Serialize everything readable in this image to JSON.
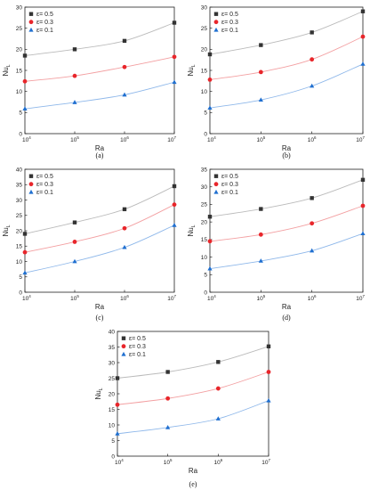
{
  "chart_data": [
    {
      "type": "line",
      "panel_label": "(a)",
      "xlabel": "Ra",
      "ylabel": "Nu",
      "ylabel_sub": "L",
      "x": [
        4,
        5,
        6,
        7
      ],
      "x_scale": "log",
      "xtick_base": "10",
      "ylim": [
        0,
        30
      ],
      "yticks": [
        0,
        5,
        10,
        15,
        20,
        25,
        30
      ],
      "grid": false,
      "legend": "top-left",
      "series": [
        {
          "name": "ε= 0.5",
          "marker": "square",
          "color": "#333333",
          "line_color": "#bbbbbb",
          "values": [
            18.5,
            20.0,
            22.0,
            26.3
          ]
        },
        {
          "name": "ε= 0.3",
          "marker": "circle",
          "color": "#e8262b",
          "line_color": "#f3a0a2",
          "values": [
            12.4,
            13.7,
            15.8,
            18.2
          ]
        },
        {
          "name": "ε= 0.1",
          "marker": "triangle",
          "color": "#1f6fd0",
          "line_color": "#8fb8ea",
          "values": [
            5.9,
            7.4,
            9.2,
            12.2
          ]
        }
      ]
    },
    {
      "type": "line",
      "panel_label": "(b)",
      "xlabel": "Ra",
      "ylabel": "Nu",
      "ylabel_sub": "L",
      "x": [
        4,
        5,
        6,
        7
      ],
      "x_scale": "log",
      "xtick_base": "10",
      "ylim": [
        0,
        30
      ],
      "yticks": [
        0,
        5,
        10,
        15,
        20,
        25,
        30
      ],
      "grid": false,
      "legend": "top-left",
      "series": [
        {
          "name": "ε= 0.5",
          "marker": "square",
          "color": "#333333",
          "line_color": "#bbbbbb",
          "values": [
            18.8,
            21.0,
            24.0,
            29.0
          ]
        },
        {
          "name": "ε= 0.3",
          "marker": "circle",
          "color": "#e8262b",
          "line_color": "#f3a0a2",
          "values": [
            12.8,
            14.6,
            17.6,
            23.0
          ]
        },
        {
          "name": "ε= 0.1",
          "marker": "triangle",
          "color": "#1f6fd0",
          "line_color": "#8fb8ea",
          "values": [
            6.1,
            8.0,
            11.3,
            16.5
          ]
        }
      ]
    },
    {
      "type": "line",
      "panel_label": "(c)",
      "xlabel": "Ra",
      "ylabel": "Nu",
      "ylabel_sub": "L",
      "x": [
        4,
        5,
        6,
        7
      ],
      "x_scale": "log",
      "xtick_base": "10",
      "ylim": [
        0,
        40
      ],
      "yticks": [
        0,
        5,
        10,
        15,
        20,
        25,
        30,
        35,
        40
      ],
      "grid": false,
      "legend": "top-left",
      "series": [
        {
          "name": "ε= 0.5",
          "marker": "square",
          "color": "#333333",
          "line_color": "#bbbbbb",
          "values": [
            19.0,
            22.7,
            27.0,
            34.5
          ]
        },
        {
          "name": "ε= 0.3",
          "marker": "circle",
          "color": "#e8262b",
          "line_color": "#f3a0a2",
          "values": [
            13.0,
            16.4,
            20.8,
            28.5
          ]
        },
        {
          "name": "ε= 0.1",
          "marker": "triangle",
          "color": "#1f6fd0",
          "line_color": "#8fb8ea",
          "values": [
            6.3,
            10.0,
            14.6,
            21.8
          ]
        }
      ]
    },
    {
      "type": "line",
      "panel_label": "(d)",
      "xlabel": "Ra",
      "ylabel": "Nu",
      "ylabel_sub": "L",
      "x": [
        4,
        5,
        6,
        7
      ],
      "x_scale": "log",
      "xtick_base": "10",
      "ylim": [
        0,
        35
      ],
      "yticks": [
        0,
        5,
        10,
        15,
        20,
        25,
        30,
        35
      ],
      "grid": false,
      "legend": "top-left",
      "series": [
        {
          "name": "ε= 0.5",
          "marker": "square",
          "color": "#333333",
          "line_color": "#bbbbbb",
          "values": [
            21.5,
            23.7,
            26.8,
            32.0
          ]
        },
        {
          "name": "ε= 0.3",
          "marker": "circle",
          "color": "#e8262b",
          "line_color": "#f3a0a2",
          "values": [
            14.5,
            16.4,
            19.6,
            24.6
          ]
        },
        {
          "name": "ε= 0.1",
          "marker": "triangle",
          "color": "#1f6fd0",
          "line_color": "#8fb8ea",
          "values": [
            6.7,
            8.9,
            11.8,
            16.7
          ]
        }
      ]
    },
    {
      "type": "line",
      "panel_label": "(e)",
      "xlabel": "Ra",
      "ylabel": "Nu",
      "ylabel_sub": "L",
      "x": [
        4,
        5,
        6,
        7
      ],
      "x_scale": "log",
      "xtick_base": "10",
      "ylim": [
        0,
        40
      ],
      "yticks": [
        0,
        5,
        10,
        15,
        20,
        25,
        30,
        35,
        40
      ],
      "grid": false,
      "legend": "top-left",
      "series": [
        {
          "name": "ε= 0.5",
          "marker": "square",
          "color": "#333333",
          "line_color": "#bbbbbb",
          "values": [
            25.0,
            27.0,
            30.2,
            35.2
          ]
        },
        {
          "name": "ε= 0.3",
          "marker": "circle",
          "color": "#e8262b",
          "line_color": "#f3a0a2",
          "values": [
            16.5,
            18.5,
            21.7,
            27.0
          ]
        },
        {
          "name": "ε= 0.1",
          "marker": "triangle",
          "color": "#1f6fd0",
          "line_color": "#8fb8ea",
          "values": [
            7.2,
            9.2,
            12.0,
            17.8
          ]
        }
      ]
    }
  ]
}
